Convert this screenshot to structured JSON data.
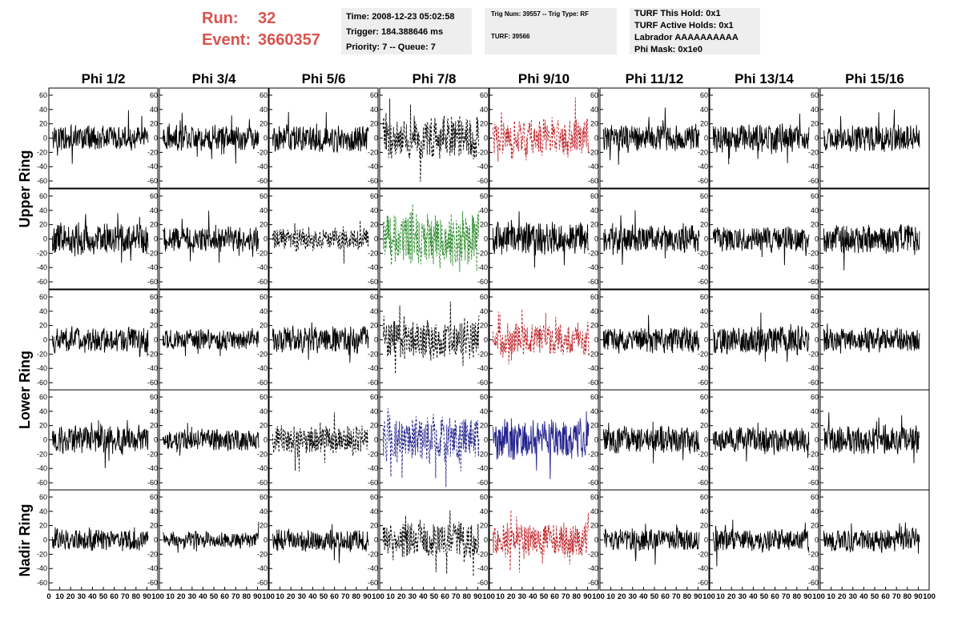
{
  "header": {
    "run_label": "Run:",
    "run_value": "32",
    "event_label": "Event:",
    "event_value": "3660357",
    "time": "Time: 2008-12-23 05:02:58",
    "trigger": "Trigger: 184.388646 ms",
    "priority": "Priority: 7 -- Queue: 7",
    "trig_num": "Trig Num: 39557 -- Trig Type: RF",
    "turf": "TURF: 39566",
    "turf_this_hold": "TURF This Hold: 0x1",
    "turf_active_holds": "TURF Active Holds: 0x1",
    "labrador": "Labrador AAAAAAAAAA",
    "phi_mask": "Phi Mask: 0x1e0"
  },
  "chart_data": {
    "type": "line",
    "columns": [
      "Phi 1/2",
      "Phi 3/4",
      "Phi 5/6",
      "Phi 7/8",
      "Phi 9/10",
      "Phi 11/12",
      "Phi 13/14",
      "Phi 15/16"
    ],
    "ring_labels": [
      "Upper Ring",
      "Lower Ring",
      "Nadir Ring"
    ],
    "rows": 5,
    "ylim": [
      -70,
      70
    ],
    "yticks": [
      -60,
      -40,
      -20,
      0,
      20,
      40,
      60
    ],
    "xlim": [
      0,
      100
    ],
    "xticks_row1": [
      "0",
      "10",
      "20",
      "30",
      "40",
      "50",
      "60",
      "70",
      "80",
      "90",
      "100"
    ],
    "xticks_other": [
      "10",
      "20",
      "30",
      "40",
      "50",
      "60",
      "70",
      "80",
      "90",
      "100"
    ],
    "samples_per_trace": 260,
    "colors": {
      "black": "#000000",
      "red": "#c1272d",
      "green": "#2e8b2e",
      "blue": "#23238e"
    },
    "panels": [
      [
        {
          "color": "black",
          "dashed": false,
          "amp": 11
        },
        {
          "color": "black",
          "dashed": false,
          "amp": 11
        },
        {
          "color": "black",
          "dashed": false,
          "amp": 12
        },
        {
          "color": "black",
          "dashed": true,
          "amp": 20
        },
        {
          "color": "red",
          "dashed": true,
          "amp": 17
        },
        {
          "color": "black",
          "dashed": false,
          "amp": 12
        },
        {
          "color": "black",
          "dashed": false,
          "amp": 13
        },
        {
          "color": "black",
          "dashed": false,
          "amp": 12
        }
      ],
      [
        {
          "color": "black",
          "dashed": false,
          "amp": 14
        },
        {
          "color": "black",
          "dashed": false,
          "amp": 11
        },
        {
          "color": "black",
          "dashed": true,
          "amp": 10
        },
        {
          "color": "green",
          "dashed": true,
          "amp": 25
        },
        {
          "color": "black",
          "dashed": false,
          "amp": 14
        },
        {
          "color": "black",
          "dashed": false,
          "amp": 12
        },
        {
          "color": "black",
          "dashed": false,
          "amp": 11
        },
        {
          "color": "black",
          "dashed": false,
          "amp": 13
        }
      ],
      [
        {
          "color": "black",
          "dashed": false,
          "amp": 11
        },
        {
          "color": "black",
          "dashed": false,
          "amp": 9
        },
        {
          "color": "black",
          "dashed": false,
          "amp": 12
        },
        {
          "color": "black",
          "dashed": true,
          "amp": 17
        },
        {
          "color": "red",
          "dashed": true,
          "amp": 15
        },
        {
          "color": "black",
          "dashed": false,
          "amp": 12
        },
        {
          "color": "black",
          "dashed": false,
          "amp": 13
        },
        {
          "color": "black",
          "dashed": false,
          "amp": 11
        }
      ],
      [
        {
          "color": "black",
          "dashed": false,
          "amp": 12
        },
        {
          "color": "black",
          "dashed": false,
          "amp": 10
        },
        {
          "color": "black",
          "dashed": true,
          "amp": 13
        },
        {
          "color": "blue",
          "dashed": true,
          "amp": 20
        },
        {
          "color": "blue",
          "dashed": false,
          "amp": 18
        },
        {
          "color": "black",
          "dashed": false,
          "amp": 12
        },
        {
          "color": "black",
          "dashed": false,
          "amp": 11
        },
        {
          "color": "black",
          "dashed": false,
          "amp": 13
        }
      ],
      [
        {
          "color": "black",
          "dashed": false,
          "amp": 10
        },
        {
          "color": "black",
          "dashed": false,
          "amp": 7
        },
        {
          "color": "black",
          "dashed": false,
          "amp": 10
        },
        {
          "color": "black",
          "dashed": true,
          "amp": 16
        },
        {
          "color": "red",
          "dashed": true,
          "amp": 15
        },
        {
          "color": "black",
          "dashed": false,
          "amp": 10
        },
        {
          "color": "black",
          "dashed": false,
          "amp": 10
        },
        {
          "color": "black",
          "dashed": false,
          "amp": 10
        }
      ]
    ]
  }
}
